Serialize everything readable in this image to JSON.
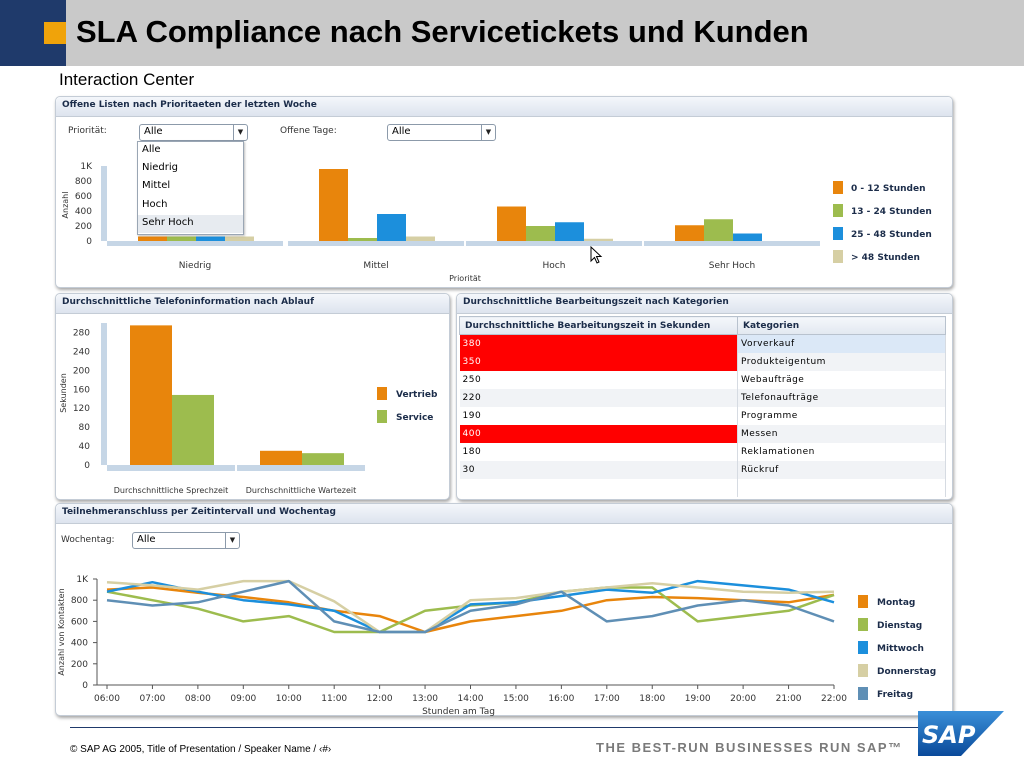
{
  "slide": {
    "title": "SLA Compliance nach Servicetickets und Kunden",
    "footer": "©   SAP AG 2005, Title of Presentation / Speaker Name / ‹#›",
    "slogan": "THE BEST-RUN BUSINESSES RUN SAP™",
    "logo_text": "SAP"
  },
  "app": {
    "title": "Interaction Center"
  },
  "colors": {
    "orange": "#e8850c",
    "green": "#9dbc4e",
    "blue": "#1c8fdc",
    "beige": "#d6cfa4",
    "steel": "#5f8fb5",
    "red": "#ff0000",
    "header_grey": "#c9c9c9",
    "header_blue": "#1f3a6b"
  },
  "panel1": {
    "title": "Offene Listen nach Prioritaeten der letzten Woche",
    "prio_label": "Priorität:",
    "prio_value": "Alle",
    "tage_label": "Offene Tage:",
    "tage_value": "Alle",
    "dropdown_options": [
      "Alle",
      "Niedrig",
      "Mittel",
      "Hoch",
      "Sehr Hoch"
    ],
    "dropdown_highlighted": "Sehr Hoch"
  },
  "panel2": {
    "title": "Durchschnittliche Telefoninformation nach Ablauf"
  },
  "panel3": {
    "title": "Durchschnittliche Bearbeitungszeit nach Kategorien",
    "columns": [
      "Durchschnittliche Bearbeitungszeit in Sekunden",
      "Kategorien"
    ],
    "rows": [
      {
        "value": "380",
        "category": "Vorverkauf",
        "alert": true
      },
      {
        "value": "350",
        "category": "Produkteigentum",
        "alert": true
      },
      {
        "value": "250",
        "category": "Webaufträge",
        "alert": false
      },
      {
        "value": "220",
        "category": "Telefonaufträge",
        "alert": false
      },
      {
        "value": "190",
        "category": "Programme",
        "alert": false
      },
      {
        "value": "400",
        "category": "Messen",
        "alert": true
      },
      {
        "value": "180",
        "category": "Reklamationen",
        "alert": false
      },
      {
        "value": "30",
        "category": "Rückruf",
        "alert": false
      }
    ]
  },
  "panel4": {
    "title": "Teilnehmeranschluss per Zeitintervall und Wochentag",
    "wochentag_label": "Wochentag:",
    "wochentag_value": "Alle"
  },
  "chart_data": [
    {
      "type": "bar",
      "xlabel": "Priorität",
      "ylabel": "Anzahl",
      "ylim": [
        0,
        1000
      ],
      "yticks": [
        "0",
        "200",
        "400",
        "600",
        "800",
        "1K"
      ],
      "categories": [
        "Niedrig",
        "Mittel",
        "Hoch",
        "Sehr Hoch"
      ],
      "series": [
        {
          "name": "0 - 12 Stunden",
          "values": [
            60,
            960,
            460,
            210
          ]
        },
        {
          "name": "13 - 24 Stunden",
          "values": [
            60,
            40,
            200,
            290
          ]
        },
        {
          "name": "25 - 48 Stunden",
          "values": [
            60,
            360,
            250,
            100
          ]
        },
        {
          "name": "> 48 Stunden",
          "values": [
            60,
            60,
            30,
            0
          ]
        }
      ],
      "legend": "right"
    },
    {
      "type": "bar",
      "ylabel": "Sekunden",
      "ylim": [
        0,
        300
      ],
      "yticks": [
        "0",
        "40",
        "80",
        "120",
        "160",
        "200",
        "240",
        "280"
      ],
      "categories": [
        "Durchschnittliche Sprechzeit",
        "Durchschnittliche Wartezeit"
      ],
      "series": [
        {
          "name": "Vertrieb",
          "values": [
            295,
            30
          ]
        },
        {
          "name": "Service",
          "values": [
            148,
            25
          ]
        }
      ],
      "legend": "right"
    },
    {
      "type": "line",
      "xlabel": "Stunden am Tag",
      "ylabel": "Anzahl von Kontakten",
      "ylim": [
        0,
        1000
      ],
      "yticks": [
        "0",
        "200",
        "400",
        "600",
        "800",
        "1K"
      ],
      "x": [
        "06:00",
        "07:00",
        "08:00",
        "09:00",
        "10:00",
        "11:00",
        "12:00",
        "13:00",
        "14:00",
        "15:00",
        "16:00",
        "17:00",
        "18:00",
        "19:00",
        "20:00",
        "21:00",
        "22:00"
      ],
      "series": [
        {
          "name": "Montag",
          "values": [
            900,
            920,
            870,
            830,
            780,
            700,
            650,
            500,
            600,
            650,
            700,
            800,
            830,
            820,
            800,
            780,
            850
          ]
        },
        {
          "name": "Dienstag",
          "values": [
            880,
            800,
            720,
            600,
            650,
            500,
            500,
            700,
            750,
            780,
            880,
            920,
            920,
            600,
            650,
            700,
            850
          ]
        },
        {
          "name": "Mittwoch",
          "values": [
            880,
            970,
            880,
            800,
            760,
            700,
            500,
            500,
            760,
            780,
            840,
            900,
            870,
            980,
            940,
            900,
            780
          ]
        },
        {
          "name": "Donnerstag",
          "values": [
            970,
            940,
            900,
            980,
            980,
            790,
            500,
            500,
            800,
            820,
            880,
            920,
            960,
            920,
            880,
            870,
            880
          ]
        },
        {
          "name": "Freitag",
          "values": [
            800,
            750,
            780,
            880,
            980,
            600,
            500,
            500,
            700,
            760,
            880,
            600,
            650,
            750,
            800,
            750,
            600
          ]
        }
      ],
      "legend": "right"
    }
  ]
}
